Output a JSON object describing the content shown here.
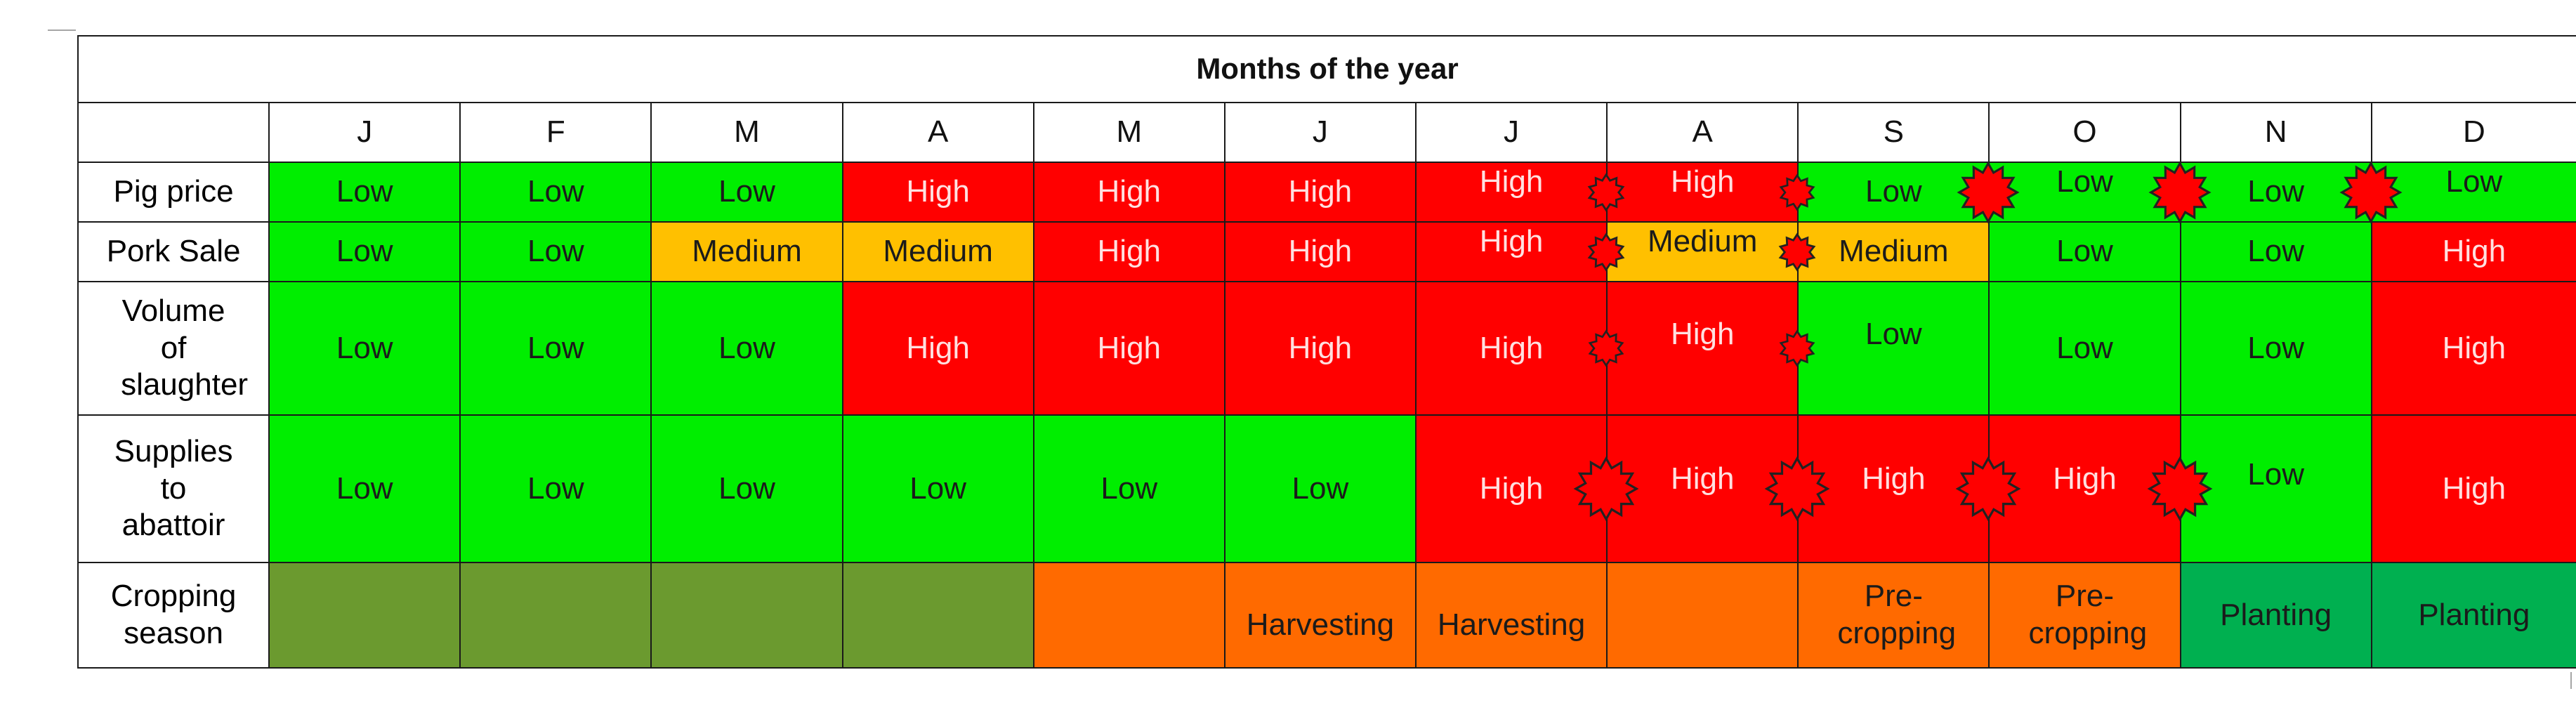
{
  "table": {
    "title": "Months of the year",
    "months": [
      "J",
      "F",
      "M",
      "A",
      "M",
      "J",
      "J",
      "A",
      "S",
      "O",
      "N",
      "D"
    ],
    "colors": {
      "low": "#00ee00",
      "high": "#ff0000",
      "medium": "#ffc000",
      "olive": "#6b9a2f",
      "orange": "#ff6a00",
      "planting_green": "#00b050"
    },
    "rows": [
      {
        "label": "Pig price",
        "cells": [
          "Low",
          "Low",
          "Low",
          "High",
          "High",
          "High",
          "High",
          "High",
          "Low",
          "Low",
          "Low",
          "Low"
        ]
      },
      {
        "label": "Pork Sale",
        "cells": [
          "Low",
          "Low",
          "Medium",
          "Medium",
          "High",
          "High",
          "High",
          "Medium",
          "Medium",
          "Low",
          "Low",
          "High"
        ]
      },
      {
        "label": "Volume of slaughter",
        "cells": [
          "Low",
          "Low",
          "Low",
          "High",
          "High",
          "High",
          "High",
          "High",
          "Low",
          "Low",
          "Low",
          "High"
        ]
      },
      {
        "label": "Supplies to abattoir",
        "cells": [
          "Low",
          "Low",
          "Low",
          "Low",
          "Low",
          "Low",
          "High",
          "High",
          "High",
          "High",
          "Low",
          "High"
        ]
      },
      {
        "label": "Cropping season",
        "cells": [
          "",
          "",
          "",
          "",
          "",
          "Harvesting",
          "Harvesting",
          "",
          "Pre-cropping",
          "Pre-cropping",
          "Planting",
          "Planting"
        ]
      }
    ]
  }
}
